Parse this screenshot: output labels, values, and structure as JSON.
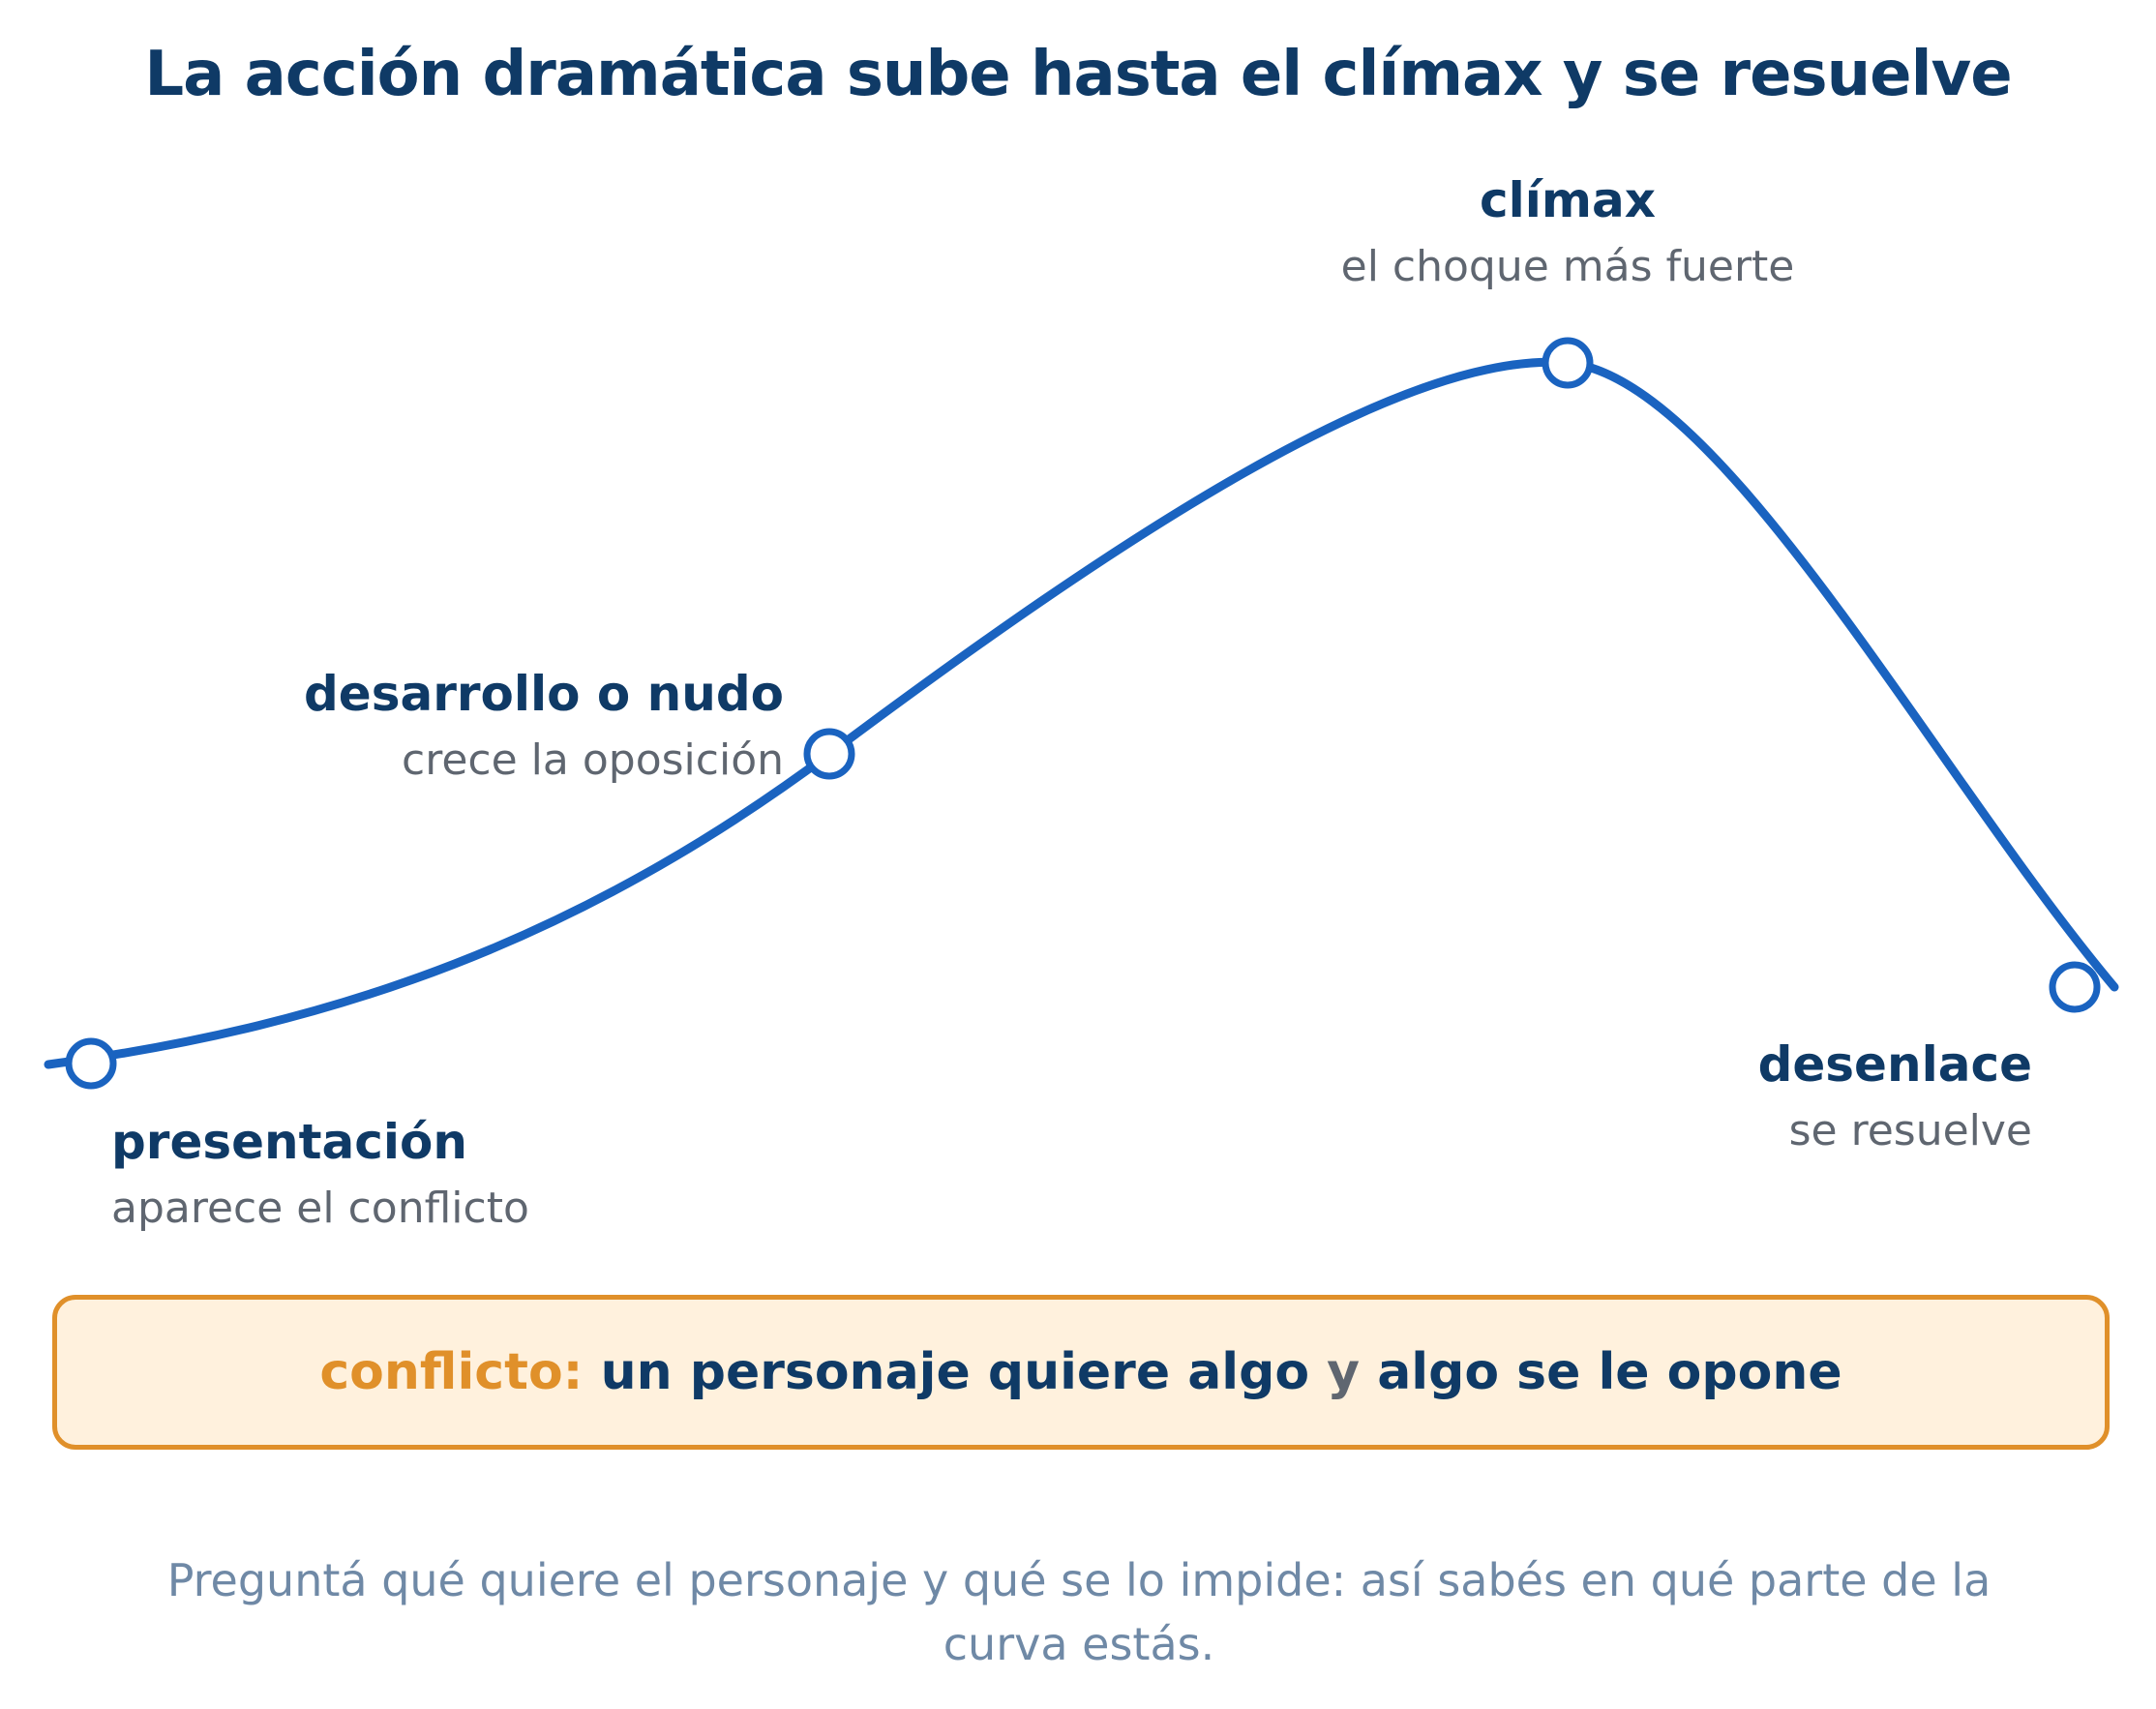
{
  "title": "La acción dramática sube hasta el clímax y se resuelve",
  "stages": [
    {
      "name": "presentación",
      "description": "aparece el conflicto"
    },
    {
      "name": "desarrollo o nudo",
      "description": "crece la oposición"
    },
    {
      "name": "clímax",
      "description": "el choque más fuerte"
    },
    {
      "name": "desenlace",
      "description": "se resuelve"
    }
  ],
  "callout": {
    "keyword": "conflicto:",
    "part1": "un personaje quiere algo",
    "conjunction": "y",
    "part2": "algo se le opone"
  },
  "footnote": "Preguntá qué quiere el personaje y qué se lo impide: así sabés en qué parte de la curva estás.",
  "colors": {
    "curve": "#1a63c0",
    "heading": "#0f3a66",
    "description": "#5f6670",
    "accent": "#e0902a",
    "callout_bg": "#fff1dd",
    "footnote": "#6f89a6"
  }
}
